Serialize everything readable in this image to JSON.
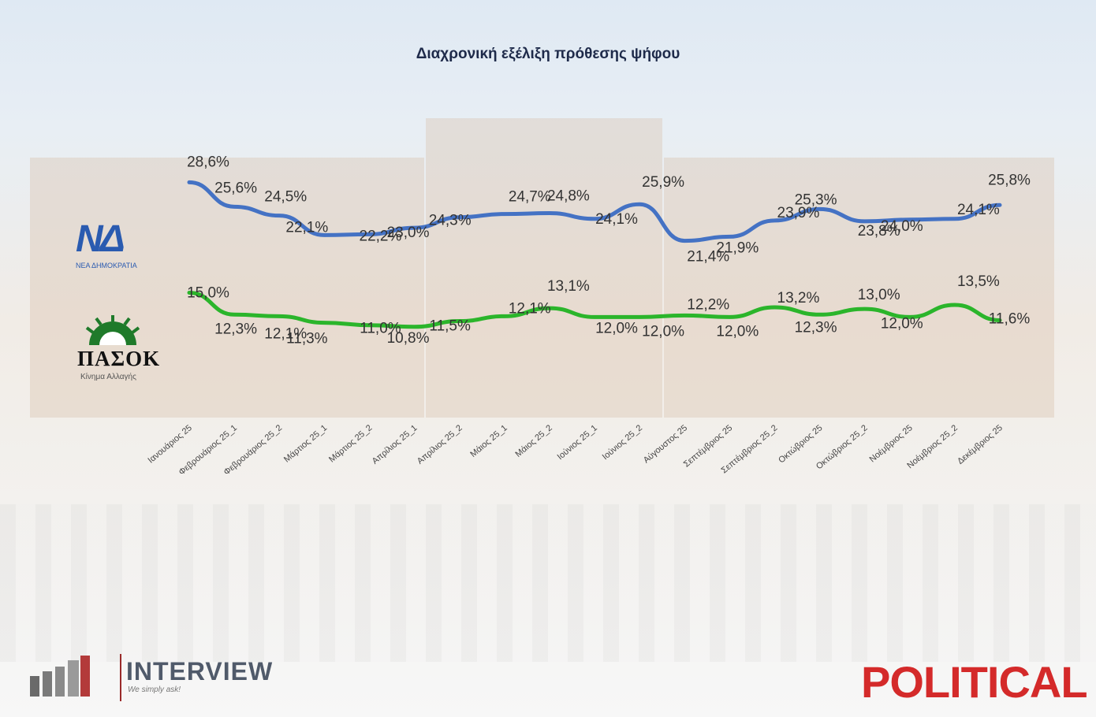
{
  "chart_data": {
    "type": "line",
    "title": "Διαχρονική εξέλιξη πρόθεσης ψήφου",
    "categories": [
      "Ιανουάριος 25",
      "Φεβρουάριος 25_1",
      "Φεβρουάριος 25_2",
      "Μάρτιος 25_1",
      "Μάρτιος 25_2",
      "Απρίλιος 25_1",
      "Απρίλιος 25_2",
      "Μάιος 25_1",
      "Μάιος 25_2",
      "Ιούνιος 25_1",
      "Ιούνιος 25_2",
      "Αύγουστος 25",
      "Σεπτέμβριος 25",
      "Σεπτέμβριος 25_2",
      "Οκτώβριος 25",
      "Οκτώβριος 25_2",
      "Νοέμβριος 25",
      "Νοέμβριος 25_2",
      "Δεκέμβριος 25"
    ],
    "series": [
      {
        "name": "ΝΔ",
        "color": "#4472c4",
        "values": [
          28.6,
          25.6,
          24.5,
          22.1,
          22.2,
          23.0,
          24.3,
          24.7,
          24.8,
          24.1,
          25.9,
          21.4,
          21.9,
          23.9,
          25.3,
          23.8,
          24.0,
          24.1,
          25.8
        ],
        "labels": [
          "28,6%",
          "25,6%",
          "24,5%",
          "22,1%",
          "22,2%",
          "23,0%",
          "24,3%",
          "24,7%",
          "24,8%",
          "24,1%",
          "25,9%",
          "21,4%",
          "21,9%",
          "23,9%",
          "25,3%",
          "23,8%",
          "24,0%",
          "24,1%",
          "25,8%"
        ]
      },
      {
        "name": "ΠΑΣΟΚ",
        "color": "#2bb52b",
        "values": [
          15.0,
          12.3,
          12.1,
          11.3,
          11.0,
          10.8,
          11.5,
          12.1,
          13.1,
          12.0,
          12.0,
          12.2,
          12.0,
          13.2,
          12.3,
          13.0,
          12.0,
          13.5,
          11.6
        ],
        "labels": [
          "15,0%",
          "12,3%",
          "12,1%",
          "11,3%",
          "11,0%",
          "10,8%",
          "11,5%",
          "12,1%",
          "13,1%",
          "12,0%",
          "12,0%",
          "12,2%",
          "12,0%",
          "13,2%",
          "12,3%",
          "13,0%",
          "12,0%",
          "13,5%",
          "11,6%"
        ]
      }
    ],
    "grid": false,
    "legend": "left (party logos)"
  },
  "logos": {
    "nd": {
      "mark": "ΝΔ",
      "subtitle": "ΝΕΑ ΔΗΜΟΚΡΑΤΙΑ"
    },
    "pasok": {
      "name": "ΠΑΣΟΚ",
      "subtitle": "Κίνημα Αλλαγής"
    },
    "interview": {
      "name": "INTERVIEW",
      "tagline": "We simply ask!"
    },
    "political": {
      "name": "POLITICAL"
    }
  }
}
